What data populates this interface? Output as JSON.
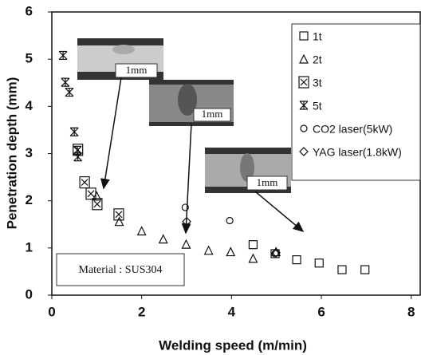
{
  "chart_data": {
    "type": "scatter",
    "x_label": "Welding speed (m/min)",
    "y_label": "Penetration depth (mm)",
    "xlim": [
      0,
      8.2
    ],
    "ylim": [
      0,
      6
    ],
    "xticks": [
      0,
      2,
      4,
      6,
      8
    ],
    "yticks": [
      0,
      1,
      2,
      3,
      4,
      5,
      6
    ],
    "series": [
      {
        "name": "1t",
        "marker": "square",
        "color": "#111",
        "x": [
          4.48,
          4.97,
          5.45,
          5.95,
          6.46,
          6.97
        ],
        "values": [
          1.07,
          0.88,
          0.75,
          0.68,
          0.54,
          0.54
        ]
      },
      {
        "name": "2t",
        "marker": "triangle",
        "color": "#111",
        "x": [
          1.0,
          1.5,
          2.0,
          2.48,
          2.99,
          3.49,
          3.98,
          4.48,
          4.99
        ],
        "values": [
          2.1,
          1.56,
          1.36,
          1.19,
          1.08,
          0.95,
          0.92,
          0.78,
          0.92
        ]
      },
      {
        "name": "3t",
        "marker": "boxx",
        "color": "#111",
        "x": [
          0.58,
          0.73,
          0.87,
          1.01,
          1.49
        ],
        "values": [
          3.08,
          2.39,
          2.15,
          1.93,
          1.71
        ]
      },
      {
        "name": "5t",
        "marker": "asterisk",
        "color": "#111",
        "x": [
          0.25,
          0.3,
          0.39,
          0.5,
          0.57,
          0.58
        ],
        "values": [
          5.08,
          4.51,
          4.3,
          3.46,
          3.07,
          2.93
        ]
      },
      {
        "name": "CO2 laser(5kW)",
        "marker": "circle",
        "color": "#111",
        "x": [
          2.97,
          3.96,
          4.97
        ],
        "values": [
          1.86,
          1.58,
          0.88
        ]
      },
      {
        "name": "YAG laser(1.8kW)",
        "marker": "diamond",
        "color": "#111",
        "x": [
          3.0,
          4.99
        ],
        "values": [
          1.56,
          0.9
        ]
      }
    ],
    "annotations": [
      "1mm",
      "1mm",
      "1mm",
      "Material : SUS304"
    ]
  }
}
